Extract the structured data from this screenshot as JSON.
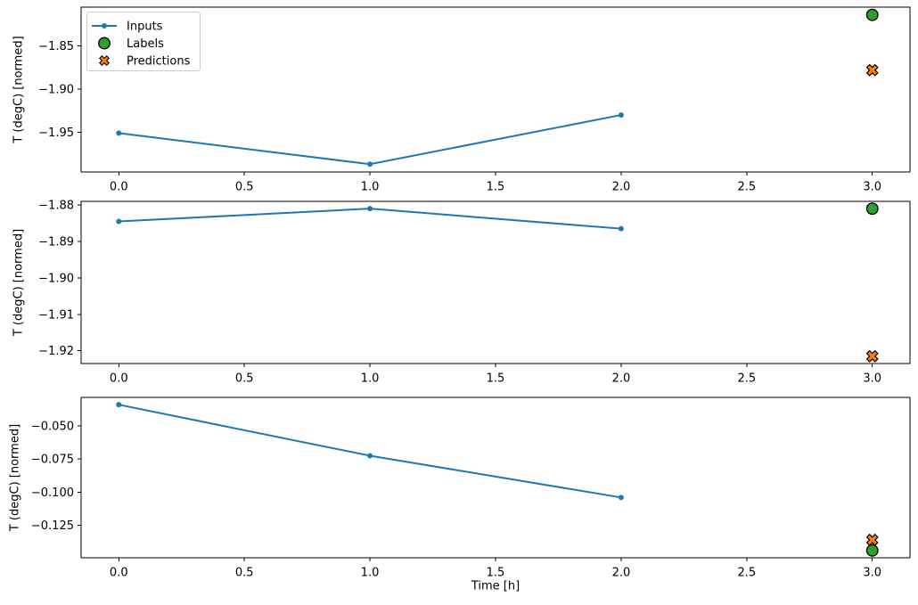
{
  "figure": {
    "background": "#ffffff",
    "spine_color": "#000000",
    "text_color": "#000000",
    "xlabel": "Time [h]",
    "ylabel": "T (degC) [normed]"
  },
  "legend": {
    "position": "upper-left-subplot-1",
    "border_color": "#cccccc",
    "fill_color": "#ffffff",
    "entries": [
      {
        "label": "Inputs",
        "marker": "line-dot",
        "color": "#1f77b4",
        "edge": "#1f77b4"
      },
      {
        "label": "Labels",
        "marker": "circle",
        "color": "#2ca02c",
        "edge": "#000000"
      },
      {
        "label": "Predictions",
        "marker": "X",
        "color": "#ff7f0e",
        "edge": "#000000"
      }
    ]
  },
  "chart_data": [
    {
      "type": "line",
      "title": "",
      "xlabel": "",
      "ylabel": "T (degC) [normed]",
      "grid": false,
      "xlim": [
        -0.15,
        3.15
      ],
      "ylim": [
        -1.996,
        -1.805
      ],
      "xticks": {
        "values": [
          0,
          0.5,
          1,
          1.5,
          2,
          2.5,
          3
        ],
        "labels": [
          "0.0",
          "0.5",
          "1.0",
          "1.5",
          "2.0",
          "2.5",
          "3.0"
        ]
      },
      "yticks": {
        "values": [
          -1.85,
          -1.9,
          -1.95
        ],
        "labels": [
          "−1.85",
          "−1.90",
          "−1.95"
        ]
      },
      "series": [
        {
          "name": "Inputs",
          "type": "line",
          "marker": "dot",
          "color": "#1f77b4",
          "x": [
            0,
            1,
            2
          ],
          "y": [
            -1.951,
            -1.987,
            -1.93
          ]
        },
        {
          "name": "Labels",
          "type": "scatter",
          "marker": "circle",
          "color": "#2ca02c",
          "x": [
            3
          ],
          "y": [
            -1.814
          ]
        },
        {
          "name": "Predictions",
          "type": "scatter",
          "marker": "X",
          "color": "#ff7f0e",
          "x": [
            3
          ],
          "y": [
            -1.878
          ]
        }
      ]
    },
    {
      "type": "line",
      "title": "",
      "xlabel": "",
      "ylabel": "T (degC) [normed]",
      "grid": false,
      "xlim": [
        -0.15,
        3.15
      ],
      "ylim": [
        -1.9235,
        -1.879
      ],
      "xticks": {
        "values": [
          0,
          0.5,
          1,
          1.5,
          2,
          2.5,
          3
        ],
        "labels": [
          "0.0",
          "0.5",
          "1.0",
          "1.5",
          "2.0",
          "2.5",
          "3.0"
        ]
      },
      "yticks": {
        "values": [
          -1.88,
          -1.89,
          -1.9,
          -1.91,
          -1.92
        ],
        "labels": [
          "−1.88",
          "−1.89",
          "−1.90",
          "−1.91",
          "−1.92"
        ]
      },
      "series": [
        {
          "name": "Inputs",
          "type": "line",
          "marker": "dot",
          "color": "#1f77b4",
          "x": [
            0,
            1,
            2
          ],
          "y": [
            -1.8845,
            -1.881,
            -1.8865
          ]
        },
        {
          "name": "Labels",
          "type": "scatter",
          "marker": "circle",
          "color": "#2ca02c",
          "x": [
            3
          ],
          "y": [
            -1.881
          ]
        },
        {
          "name": "Predictions",
          "type": "scatter",
          "marker": "X",
          "color": "#ff7f0e",
          "x": [
            3
          ],
          "y": [
            -1.9215
          ]
        }
      ]
    },
    {
      "type": "line",
      "title": "",
      "xlabel": "Time [h]",
      "ylabel": "T (degC) [normed]",
      "grid": false,
      "xlim": [
        -0.15,
        3.15
      ],
      "ylim": [
        -0.1495,
        -0.0285
      ],
      "xticks": {
        "values": [
          0,
          0.5,
          1,
          1.5,
          2,
          2.5,
          3
        ],
        "labels": [
          "0.0",
          "0.5",
          "1.0",
          "1.5",
          "2.0",
          "2.5",
          "3.0"
        ]
      },
      "yticks": {
        "values": [
          -0.05,
          -0.075,
          -0.1,
          -0.125
        ],
        "labels": [
          "−0.050",
          "−0.075",
          "−0.100",
          "−0.125"
        ]
      },
      "series": [
        {
          "name": "Inputs",
          "type": "line",
          "marker": "dot",
          "color": "#1f77b4",
          "x": [
            0,
            1,
            2
          ],
          "y": [
            -0.034,
            -0.0725,
            -0.104
          ]
        },
        {
          "name": "Labels",
          "type": "scatter",
          "marker": "circle",
          "color": "#2ca02c",
          "x": [
            3
          ],
          "y": [
            -0.144
          ]
        },
        {
          "name": "Predictions",
          "type": "scatter",
          "marker": "X",
          "color": "#ff7f0e",
          "x": [
            3
          ],
          "y": [
            -0.136
          ]
        }
      ]
    }
  ]
}
